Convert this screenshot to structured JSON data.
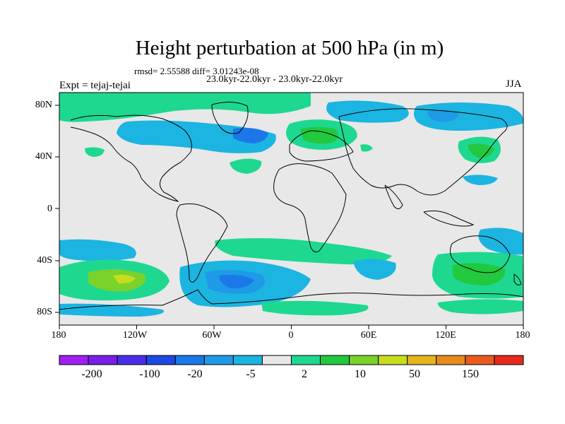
{
  "title": "Height perturbation at 500 hPa (in m)",
  "stats_text": "rmsd= 2.55588 diff= 3.01243e-08",
  "period_text": "23.0kyr-22.0kyr - 23.0kyr-22.0kyr",
  "experiment_text": "Expt = tejaj-tejai",
  "season_text": "JJA",
  "map": {
    "projection": "cylindrical equidistant",
    "lon_range": [
      -180,
      180
    ],
    "lat_range": [
      -90,
      90
    ],
    "background_color": "#e8e8e8",
    "x_tick_labels": [
      "180",
      "120W",
      "60W",
      "0",
      "60E",
      "120E",
      "180"
    ],
    "y_tick_labels": [
      "80N",
      "40N",
      "0",
      "40S",
      "80S"
    ],
    "coastline_color": "#000000"
  },
  "colorbar": {
    "colors": [
      "#a020f0",
      "#7a1ee6",
      "#4a2ee6",
      "#1e48e0",
      "#1a78e8",
      "#1e9ae6",
      "#1cb4e0",
      "#e8e8e8",
      "#1ed890",
      "#22c83e",
      "#7ad22a",
      "#c8dc1e",
      "#e6b41e",
      "#e68c1e",
      "#e85a1e",
      "#e62a1e"
    ],
    "tick_labels": [
      "-200",
      "-100",
      "-20",
      "-5",
      "2",
      "10",
      "50",
      "150"
    ]
  }
}
